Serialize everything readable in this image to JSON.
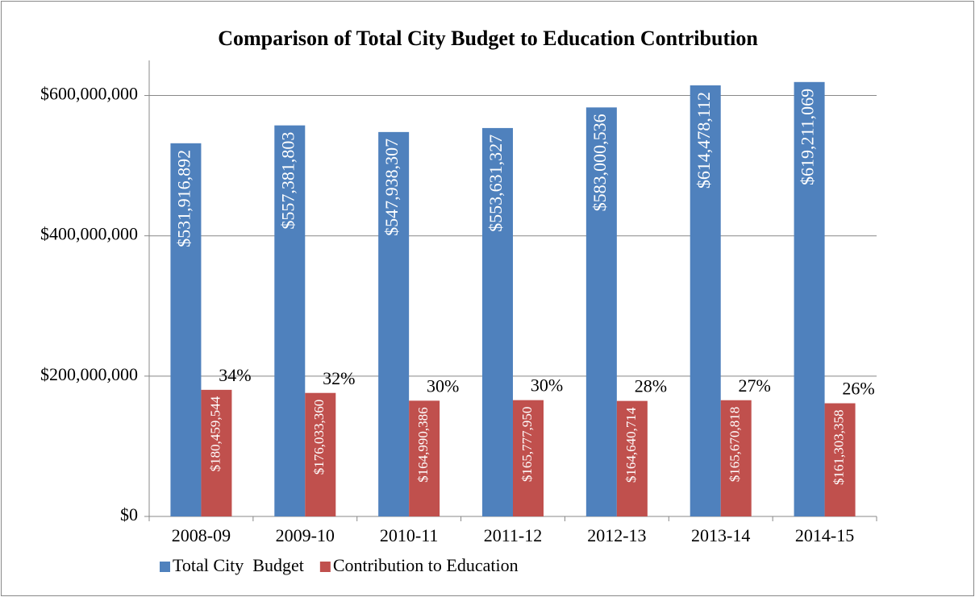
{
  "chart_data": {
    "type": "bar",
    "title": "Comparison of Total City Budget to Education Contribution",
    "categories": [
      "2008-09",
      "2009-10",
      "2010-11",
      "2011-12",
      "2012-13",
      "2013-14",
      "2014-15"
    ],
    "series": [
      {
        "name": "Total City  Budget",
        "color": "#4f81bd",
        "values": [
          531916892,
          557381803,
          547938307,
          553631327,
          583000536,
          614478112,
          619211069
        ],
        "value_labels": [
          "$531,916,892",
          "$557,381,803",
          "$547,938,307",
          "$553,631,327",
          "$583,000,536",
          "$614,478,112",
          "$619,211,069"
        ]
      },
      {
        "name": "Contribution to Education",
        "color": "#c0504d",
        "values": [
          180459544,
          176033360,
          164990386,
          165777950,
          164640714,
          165670818,
          161303358
        ],
        "value_labels": [
          "$180,459,544",
          "$176,033,360",
          "$164,990,386",
          "$165,777,950",
          "$164,640,714",
          "$165,670,818",
          "$161,303,358"
        ]
      }
    ],
    "annotations": [
      "34%",
      "32%",
      "30%",
      "30%",
      "28%",
      "27%",
      "26%"
    ],
    "ylim": [
      0,
      650000000
    ],
    "yticks": [
      {
        "value": 0,
        "label": "$0"
      },
      {
        "value": 200000000,
        "label": "$200,000,000"
      },
      {
        "value": 400000000,
        "label": "$400,000,000"
      },
      {
        "value": 600000000,
        "label": "$600,000,000"
      }
    ],
    "grid": true,
    "legend": "bottom"
  }
}
